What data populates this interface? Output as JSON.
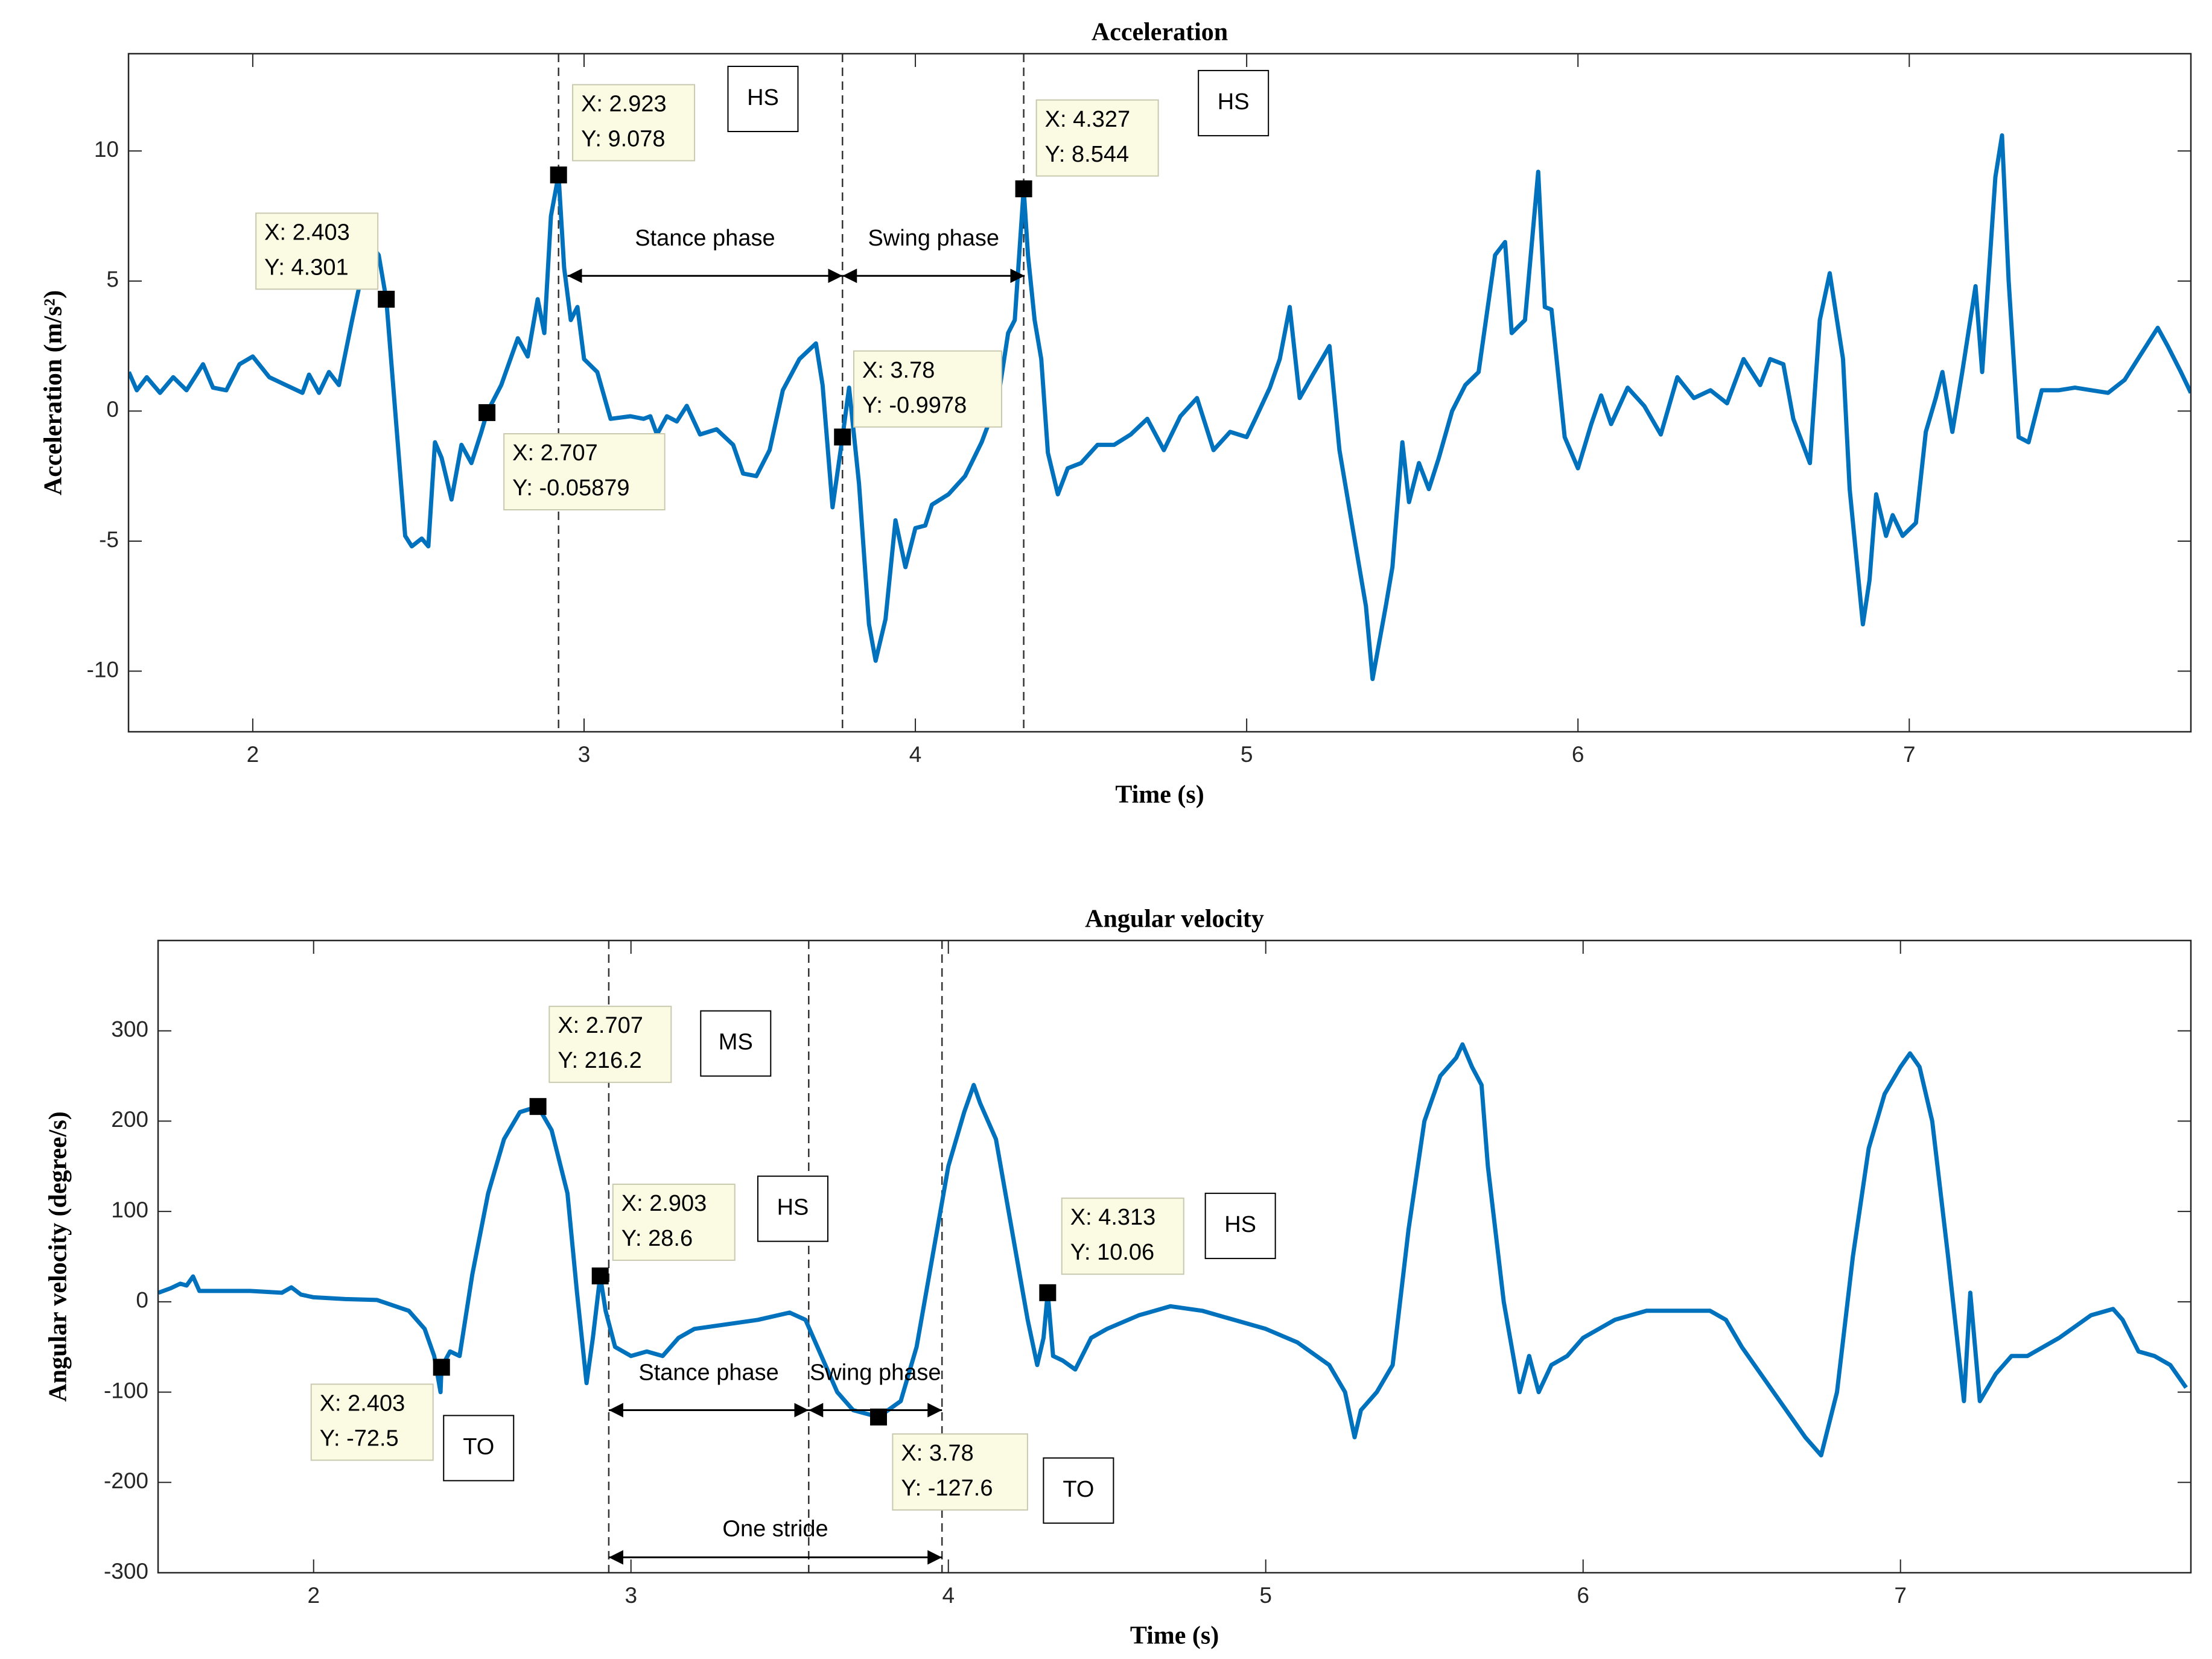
{
  "chart_data": [
    {
      "type": "line",
      "title": "Acceleration",
      "xlabel": "Time (s)",
      "ylabel": "Acceleration (m/s²)",
      "xlim": [
        1.625,
        7.85
      ],
      "ylim": [
        -12.33,
        13.74
      ],
      "xticks": [
        2,
        3,
        4,
        5,
        6,
        7
      ],
      "yticks": [
        -10,
        -5,
        0,
        5,
        10
      ],
      "color": "#0072BD",
      "x": [
        1.626,
        1.65,
        1.68,
        1.72,
        1.76,
        1.8,
        1.85,
        1.88,
        1.92,
        1.96,
        2.0,
        2.05,
        2.1,
        2.15,
        2.17,
        2.2,
        2.23,
        2.26,
        2.3,
        2.35,
        2.38,
        2.403,
        2.43,
        2.46,
        2.48,
        2.51,
        2.53,
        2.55,
        2.57,
        2.6,
        2.63,
        2.66,
        2.69,
        2.707,
        2.75,
        2.8,
        2.83,
        2.86,
        2.88,
        2.9,
        2.923,
        2.94,
        2.96,
        2.98,
        3.0,
        3.04,
        3.08,
        3.14,
        3.18,
        3.2,
        3.22,
        3.25,
        3.28,
        3.31,
        3.35,
        3.4,
        3.45,
        3.48,
        3.52,
        3.56,
        3.6,
        3.65,
        3.7,
        3.72,
        3.75,
        3.78,
        3.8,
        3.83,
        3.86,
        3.88,
        3.91,
        3.94,
        3.97,
        4.0,
        4.03,
        4.05,
        4.1,
        4.15,
        4.2,
        4.25,
        4.28,
        4.3,
        4.327,
        4.34,
        4.36,
        4.38,
        4.4,
        4.43,
        4.46,
        4.5,
        4.55,
        4.6,
        4.65,
        4.7,
        4.75,
        4.8,
        4.85,
        4.9,
        4.95,
        5.0,
        5.03,
        5.07,
        5.1,
        5.13,
        5.16,
        5.2,
        5.25,
        5.28,
        5.32,
        5.36,
        5.38,
        5.42,
        5.44,
        5.47,
        5.49,
        5.52,
        5.55,
        5.58,
        5.62,
        5.66,
        5.7,
        5.75,
        5.78,
        5.8,
        5.84,
        5.88,
        5.9,
        5.92,
        5.96,
        6.0,
        6.04,
        6.07,
        6.1,
        6.15,
        6.2,
        6.25,
        6.3,
        6.35,
        6.4,
        6.45,
        6.5,
        6.55,
        6.58,
        6.62,
        6.65,
        6.7,
        6.73,
        6.76,
        6.8,
        6.82,
        6.86,
        6.88,
        6.9,
        6.93,
        6.95,
        6.98,
        7.02,
        7.05,
        7.08,
        7.1,
        7.13,
        7.16,
        7.2,
        7.22,
        7.26,
        7.28,
        7.3,
        7.33,
        7.36,
        7.4,
        7.45,
        7.5,
        7.55,
        7.6,
        7.65,
        7.7,
        7.75,
        7.78,
        7.82,
        7.85
      ],
      "values": [
        1.5,
        0.8,
        1.3,
        0.7,
        1.3,
        0.8,
        1.8,
        0.9,
        0.8,
        1.8,
        2.1,
        1.3,
        1.0,
        0.7,
        1.4,
        0.7,
        1.5,
        1.0,
        3.5,
        6.5,
        6.0,
        4.301,
        0,
        -4.8,
        -5.2,
        -4.9,
        -5.2,
        -1.2,
        -1.8,
        -3.4,
        -1.3,
        -2.0,
        -0.8,
        -0.05879,
        1.0,
        2.8,
        2.1,
        4.3,
        3.0,
        7.5,
        9.078,
        5.5,
        3.5,
        4.0,
        2.0,
        1.5,
        -0.3,
        -0.2,
        -0.3,
        -0.2,
        -0.9,
        -0.2,
        -0.4,
        0.2,
        -0.9,
        -0.7,
        -1.3,
        -2.4,
        -2.5,
        -1.5,
        0.8,
        2.0,
        2.6,
        1.0,
        -3.7,
        -0.9978,
        0.9,
        -2.8,
        -8.2,
        -9.6,
        -8.0,
        -4.2,
        -6.0,
        -4.5,
        -4.4,
        -3.6,
        -3.2,
        -2.5,
        -1.2,
        0.5,
        3.0,
        3.5,
        8.544,
        6.0,
        3.5,
        2.0,
        -1.6,
        -3.2,
        -2.2,
        -2.0,
        -1.3,
        -1.3,
        -0.9,
        -0.3,
        -1.5,
        -0.2,
        0.5,
        -1.5,
        -0.8,
        -1.0,
        -0.2,
        0.9,
        2.0,
        4.0,
        0.5,
        1.4,
        2.5,
        -1.5,
        -4.5,
        -7.5,
        -10.3,
        -7.5,
        -6.0,
        -1.2,
        -3.5,
        -2.0,
        -3.0,
        -1.8,
        0,
        1.0,
        1.5,
        6.0,
        6.5,
        3.0,
        3.5,
        9.2,
        4.0,
        3.9,
        -1.0,
        -2.2,
        -0.5,
        0.6,
        -0.5,
        0.9,
        0.2,
        -0.9,
        1.3,
        0.5,
        0.8,
        0.3,
        2.0,
        1.0,
        2.0,
        1.8,
        -0.3,
        -2.0,
        3.5,
        5.3,
        2.0,
        -3.0,
        -8.2,
        -6.5,
        -3.2,
        -4.8,
        -4.0,
        -4.8,
        -4.3,
        -0.8,
        0.5,
        1.5,
        -0.8,
        1.5,
        4.8,
        1.5,
        9.0,
        10.6,
        5.0,
        -1.0,
        -1.2,
        0.8,
        0.8,
        0.9,
        0.8,
        0.7,
        1.2,
        2.2,
        3.2,
        2.5,
        1.5,
        0.7
      ],
      "datatips": [
        {
          "x": {
            "value": 2.403,
            "label": "X: 2.403"
          },
          "y": {
            "value": 4.301,
            "label": "Y: 4.301"
          }
        },
        {
          "x": {
            "value": 2.923,
            "label": "X: 2.923"
          },
          "y": {
            "value": 9.078,
            "label": "Y: 9.078"
          }
        },
        {
          "x": {
            "value": 2.707,
            "label": "X: 2.707"
          },
          "y": {
            "value": -0.05879,
            "label": "Y: -0.05879"
          }
        },
        {
          "x": {
            "value": 3.78,
            "label": "X: 3.78"
          },
          "y": {
            "value": -0.9978,
            "label": "Y: -0.9978"
          }
        },
        {
          "x": {
            "value": 4.327,
            "label": "X: 4.327"
          },
          "y": {
            "value": 8.544,
            "label": "Y: 8.544"
          }
        }
      ],
      "reference_lines": [
        2.923,
        3.78,
        4.327
      ],
      "boxes": [
        {
          "text": "HS",
          "x": 3.54,
          "y": 12.0
        },
        {
          "text": "HS",
          "x": 4.96,
          "y": 11.84
        }
      ],
      "arrows": [
        {
          "text": "Stance phase",
          "x": [
            2.95,
            3.78
          ],
          "y": 5.2
        },
        {
          "text": "Swing phase",
          "x": [
            3.78,
            4.33
          ],
          "y": 5.2
        }
      ]
    },
    {
      "type": "line",
      "title": "Angular velocity",
      "xlabel": "Time (s)",
      "ylabel": "Angular velocity (degree/s)",
      "xlim": [
        1.51,
        7.915
      ],
      "ylim": [
        -300,
        400
      ],
      "xticks": [
        2,
        3,
        4,
        5,
        6,
        7
      ],
      "yticks": [
        -300,
        -200,
        -100,
        0,
        100,
        200,
        300
      ],
      "color": "#0072BD",
      "x": [
        1.511,
        1.55,
        1.58,
        1.6,
        1.62,
        1.64,
        1.7,
        1.8,
        1.9,
        1.93,
        1.96,
        2.0,
        2.1,
        2.2,
        2.3,
        2.35,
        2.38,
        2.4,
        2.403,
        2.43,
        2.46,
        2.5,
        2.55,
        2.6,
        2.65,
        2.707,
        2.75,
        2.8,
        2.83,
        2.86,
        2.88,
        2.903,
        2.92,
        2.95,
        3.0,
        3.05,
        3.1,
        3.15,
        3.2,
        3.3,
        3.4,
        3.5,
        3.55,
        3.6,
        3.65,
        3.7,
        3.78,
        3.85,
        3.9,
        3.95,
        4.0,
        4.05,
        4.08,
        4.1,
        4.15,
        4.2,
        4.25,
        4.28,
        4.3,
        4.313,
        4.33,
        4.36,
        4.4,
        4.45,
        4.5,
        4.6,
        4.7,
        4.8,
        4.9,
        5.0,
        5.1,
        5.2,
        5.25,
        5.28,
        5.3,
        5.35,
        5.4,
        5.45,
        5.5,
        5.55,
        5.6,
        5.62,
        5.65,
        5.68,
        5.7,
        5.75,
        5.8,
        5.83,
        5.86,
        5.9,
        5.95,
        6.0,
        6.1,
        6.2,
        6.3,
        6.4,
        6.45,
        6.5,
        6.6,
        6.7,
        6.75,
        6.8,
        6.85,
        6.9,
        6.95,
        7.0,
        7.03,
        7.06,
        7.1,
        7.15,
        7.2,
        7.22,
        7.25,
        7.3,
        7.35,
        7.4,
        7.5,
        7.6,
        7.67,
        7.7,
        7.75,
        7.8,
        7.85,
        7.9
      ],
      "values": [
        10,
        15,
        20,
        18,
        28,
        12,
        12,
        12,
        10,
        16,
        8,
        5,
        3,
        2,
        -10,
        -30,
        -60,
        -100,
        -72.5,
        -55,
        -60,
        30,
        120,
        180,
        210,
        216.2,
        190,
        120,
        10,
        -90,
        -40,
        28.6,
        -10,
        -50,
        -60,
        -55,
        -60,
        -40,
        -30,
        -25,
        -20,
        -12,
        -20,
        -60,
        -100,
        -120,
        -127.6,
        -110,
        -50,
        50,
        150,
        210,
        240,
        220,
        180,
        80,
        -20,
        -70,
        -40,
        10.06,
        -60,
        -65,
        -75,
        -40,
        -30,
        -15,
        -5,
        -10,
        -20,
        -30,
        -45,
        -70,
        -100,
        -150,
        -120,
        -100,
        -70,
        80,
        200,
        250,
        270,
        285,
        260,
        240,
        150,
        0,
        -100,
        -60,
        -100,
        -70,
        -60,
        -40,
        -20,
        -10,
        -10,
        -10,
        -20,
        -50,
        -100,
        -150,
        -170,
        -100,
        50,
        170,
        230,
        260,
        275,
        260,
        200,
        50,
        -110,
        10,
        -110,
        -80,
        -60,
        -60,
        -40,
        -15,
        -8,
        -20,
        -55,
        -60,
        -70,
        -95
      ],
      "datatips": [
        {
          "x": {
            "value": 2.403,
            "label": "X: 2.403"
          },
          "y": {
            "value": -72.5,
            "label": "Y: -72.5"
          }
        },
        {
          "x": {
            "value": 2.707,
            "label": "X: 2.707"
          },
          "y": {
            "value": 216.2,
            "label": "Y: 216.2"
          }
        },
        {
          "x": {
            "value": 2.903,
            "label": "X: 2.903"
          },
          "y": {
            "value": 28.6,
            "label": "Y: 28.6"
          }
        },
        {
          "x": {
            "value": 3.78,
            "label": "X: 3.78"
          },
          "y": {
            "value": -127.6,
            "label": "Y: -127.6"
          }
        },
        {
          "x": {
            "value": 4.313,
            "label": "X: 4.313"
          },
          "y": {
            "value": 10.06,
            "label": "Y: 10.06"
          }
        }
      ],
      "reference_lines": [
        2.93,
        3.56,
        3.98
      ],
      "boxes": [
        {
          "text": "MS",
          "x": 3.33,
          "y": 286
        },
        {
          "text": "HS",
          "x": 3.51,
          "y": 103
        },
        {
          "text": "HS",
          "x": 4.92,
          "y": 84
        },
        {
          "text": "TO",
          "x": 2.52,
          "y": -162
        },
        {
          "text": "TO",
          "x": 4.41,
          "y": -209
        }
      ],
      "arrows": [
        {
          "text": "Stance phase",
          "x": [
            2.93,
            3.56
          ],
          "y": -120
        },
        {
          "text": "Swing phase",
          "x": [
            3.56,
            3.98
          ],
          "y": -120
        },
        {
          "text": "One stride",
          "x": [
            2.93,
            3.98
          ],
          "y": -283
        }
      ]
    }
  ]
}
